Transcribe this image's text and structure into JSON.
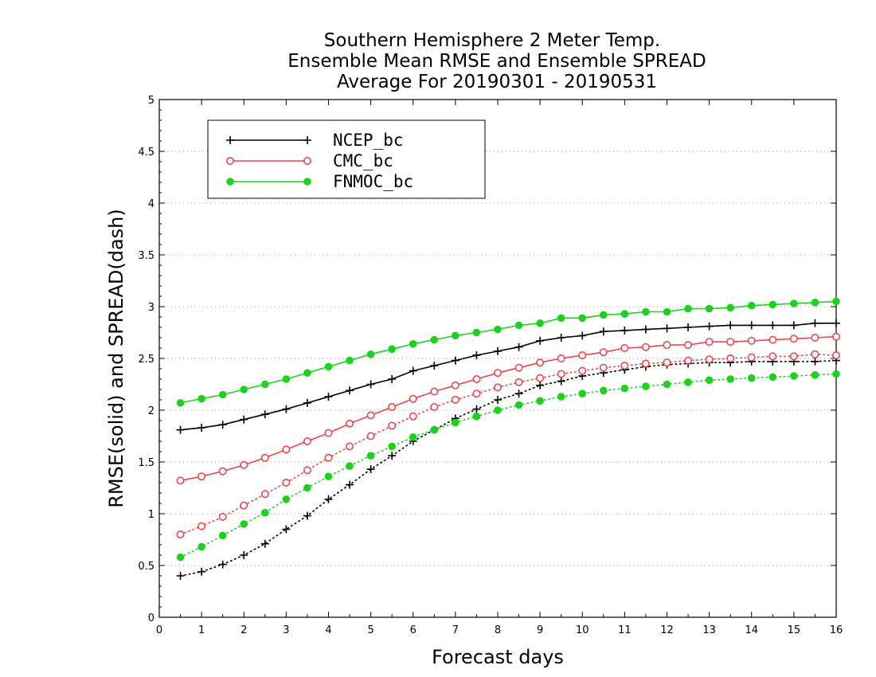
{
  "chart_data": {
    "type": "line",
    "title": [
      "Southern Hemisphere 2 Meter Temp.",
      "Ensemble Mean RMSE and Ensemble SPREAD",
      "Average For 20190301 - 20190531"
    ],
    "xlabel": "Forecast days",
    "ylabel": "RMSE(solid) and SPREAD(dash)",
    "xlim": [
      0,
      16
    ],
    "ylim": [
      0,
      5
    ],
    "xticks": [
      "0",
      "1",
      "2",
      "3",
      "4",
      "5",
      "6",
      "7",
      "8",
      "9",
      "10",
      "11",
      "12",
      "13",
      "14",
      "15",
      "16"
    ],
    "yticks": [
      "0",
      "0.5",
      "1",
      "1.5",
      "2",
      "2.5",
      "3",
      "3.5",
      "4",
      "4.5",
      "5"
    ],
    "grid": "horizontal-dotted",
    "legend_position": "top-left",
    "x": [
      0.5,
      1,
      1.5,
      2,
      2.5,
      3,
      3.5,
      4,
      4.5,
      5,
      5.5,
      6,
      6.5,
      7,
      7.5,
      8,
      8.5,
      9,
      9.5,
      10,
      10.5,
      11,
      11.5,
      12,
      12.5,
      13,
      13.5,
      14,
      14.5,
      15,
      15.5,
      16
    ],
    "series": [
      {
        "name": "NCEP_bc",
        "color": "#000000",
        "marker": "plus",
        "rmse": [
          1.81,
          1.83,
          1.86,
          1.91,
          1.96,
          2.01,
          2.07,
          2.13,
          2.19,
          2.25,
          2.3,
          2.38,
          2.43,
          2.48,
          2.53,
          2.57,
          2.61,
          2.67,
          2.7,
          2.72,
          2.76,
          2.77,
          2.78,
          2.79,
          2.8,
          2.81,
          2.82,
          2.82,
          2.82,
          2.82,
          2.84,
          2.84
        ],
        "spread": [
          0.4,
          0.44,
          0.51,
          0.6,
          0.71,
          0.85,
          0.98,
          1.14,
          1.28,
          1.43,
          1.56,
          1.7,
          1.81,
          1.92,
          2.01,
          2.1,
          2.16,
          2.24,
          2.28,
          2.33,
          2.36,
          2.39,
          2.42,
          2.44,
          2.45,
          2.46,
          2.46,
          2.47,
          2.47,
          2.47,
          2.47,
          2.48
        ]
      },
      {
        "name": "CMC_bc",
        "color": "#e8474a",
        "marker": "open-circle",
        "rmse": [
          1.32,
          1.36,
          1.41,
          1.47,
          1.54,
          1.62,
          1.7,
          1.78,
          1.87,
          1.95,
          2.03,
          2.11,
          2.18,
          2.24,
          2.3,
          2.36,
          2.41,
          2.46,
          2.5,
          2.53,
          2.56,
          2.6,
          2.61,
          2.63,
          2.63,
          2.66,
          2.66,
          2.67,
          2.68,
          2.69,
          2.7,
          2.71
        ],
        "spread": [
          0.8,
          0.88,
          0.97,
          1.08,
          1.19,
          1.3,
          1.42,
          1.54,
          1.65,
          1.75,
          1.85,
          1.94,
          2.03,
          2.1,
          2.16,
          2.22,
          2.27,
          2.31,
          2.35,
          2.38,
          2.41,
          2.43,
          2.45,
          2.46,
          2.48,
          2.49,
          2.5,
          2.51,
          2.52,
          2.52,
          2.54,
          2.53
        ]
      },
      {
        "name": "FNMOC_bc",
        "color": "#1ed11e",
        "marker": "filled-circle",
        "rmse": [
          2.07,
          2.11,
          2.15,
          2.2,
          2.25,
          2.3,
          2.36,
          2.42,
          2.48,
          2.54,
          2.59,
          2.64,
          2.68,
          2.72,
          2.75,
          2.78,
          2.82,
          2.84,
          2.89,
          2.89,
          2.92,
          2.93,
          2.95,
          2.95,
          2.98,
          2.98,
          2.99,
          3.01,
          3.02,
          3.03,
          3.04,
          3.05
        ],
        "spread": [
          0.58,
          0.68,
          0.79,
          0.9,
          1.01,
          1.14,
          1.25,
          1.36,
          1.46,
          1.56,
          1.65,
          1.74,
          1.81,
          1.88,
          1.94,
          2.0,
          2.05,
          2.09,
          2.13,
          2.16,
          2.19,
          2.21,
          2.23,
          2.25,
          2.27,
          2.29,
          2.3,
          2.31,
          2.32,
          2.33,
          2.34,
          2.35
        ]
      }
    ]
  }
}
